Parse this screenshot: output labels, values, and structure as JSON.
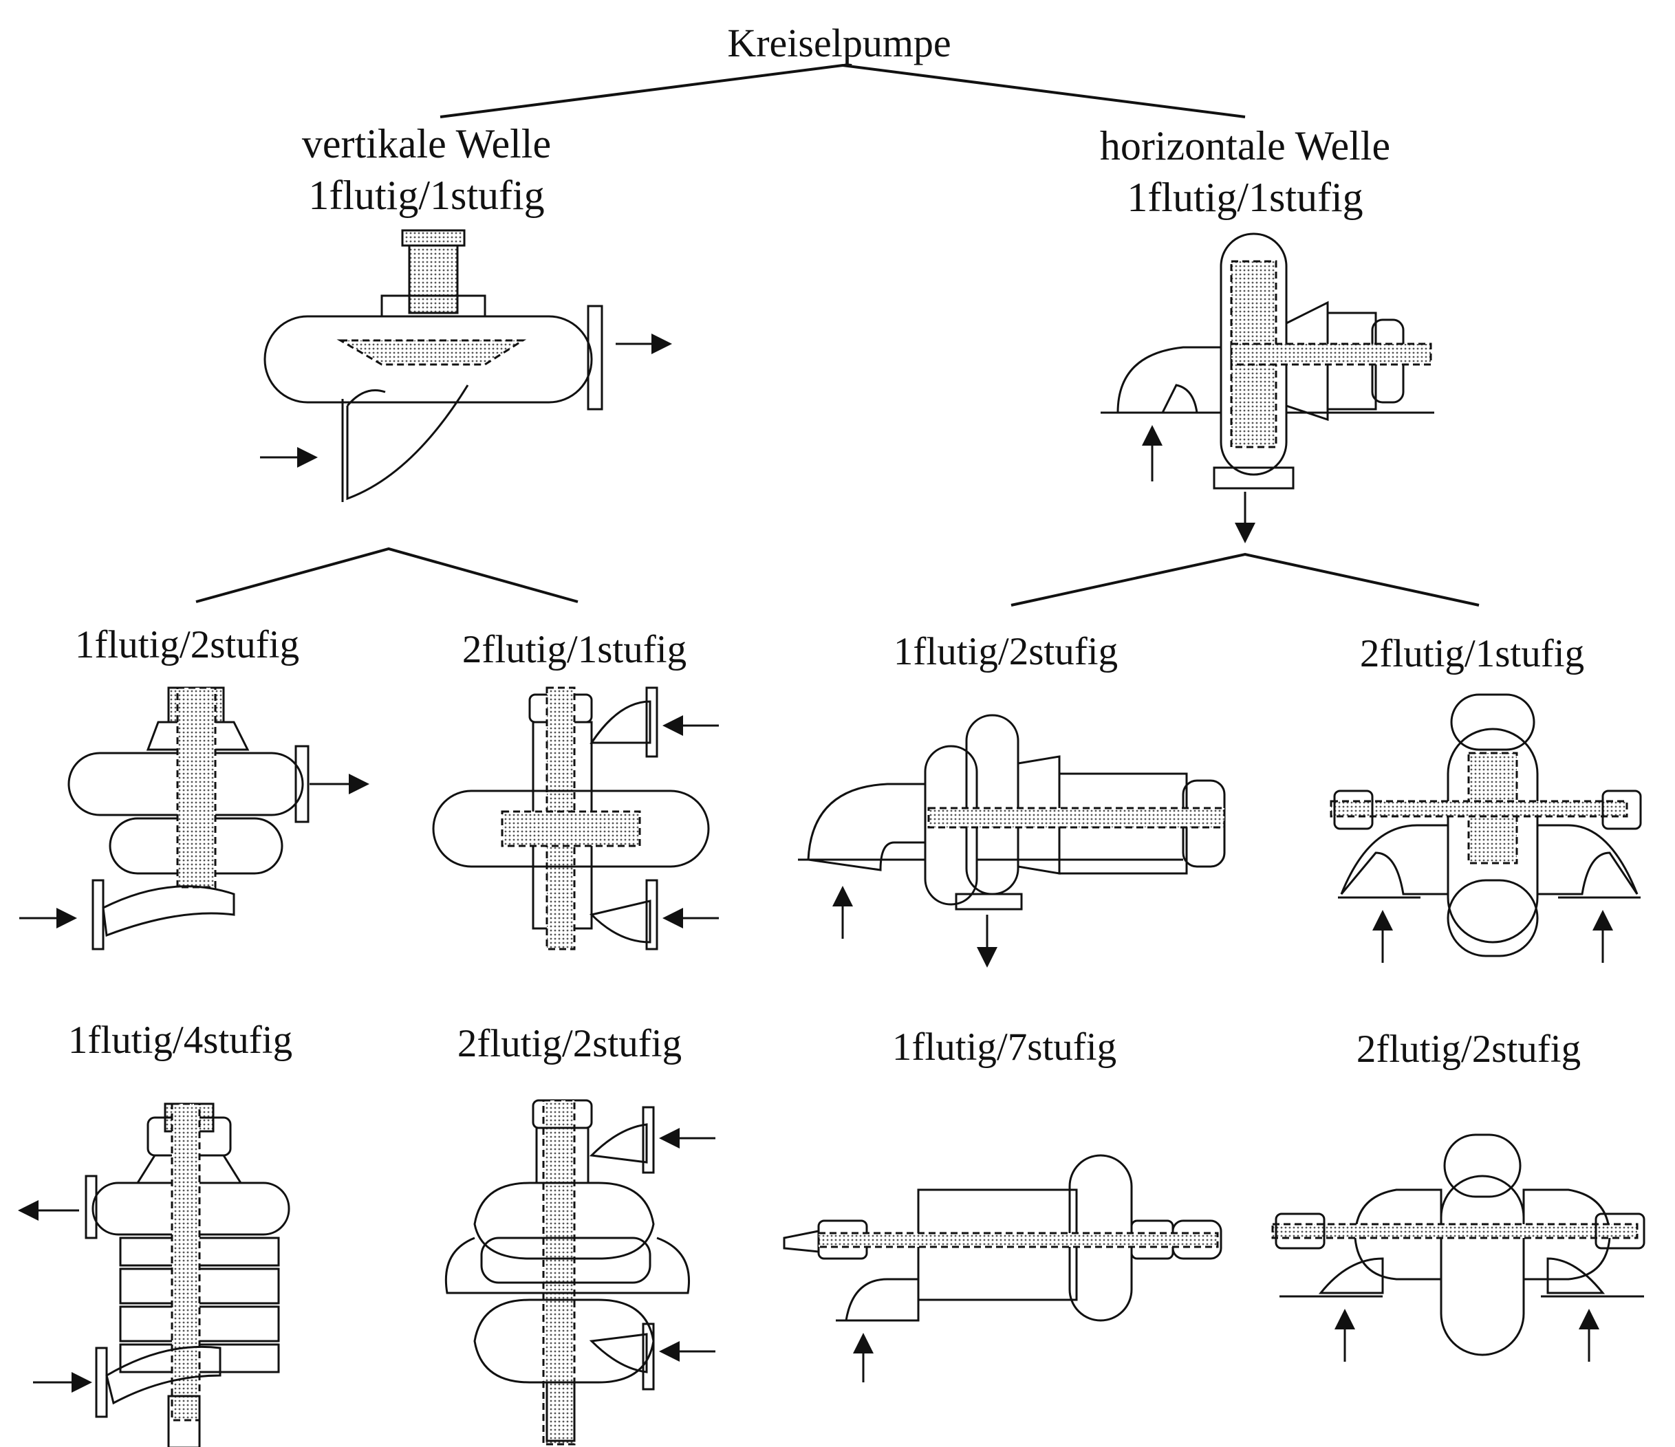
{
  "diagram": {
    "root": {
      "label": "Kreiselpumpe"
    },
    "vertical": {
      "title": "vertikale Welle",
      "subtitle": "1flutig/1stufig",
      "variants": [
        {
          "label": "1flutig/2stufig"
        },
        {
          "label": "2flutig/1stufig"
        },
        {
          "label": "1flutig/4stufig"
        },
        {
          "label": "2flutig/2stufig"
        }
      ]
    },
    "horizontal": {
      "title": "horizontale Welle",
      "subtitle": "1flutig/1stufig",
      "variants": [
        {
          "label": "1flutig/2stufig"
        },
        {
          "label": "2flutig/1stufig"
        },
        {
          "label": "1flutig/7stufig"
        },
        {
          "label": "2flutig/2stufig"
        }
      ]
    }
  },
  "colors": {
    "line": "#111111",
    "shading": "#c8c8c8",
    "background": "#ffffff"
  },
  "icons": [
    "flow-arrow-icon",
    "pump-sketch-icon"
  ]
}
